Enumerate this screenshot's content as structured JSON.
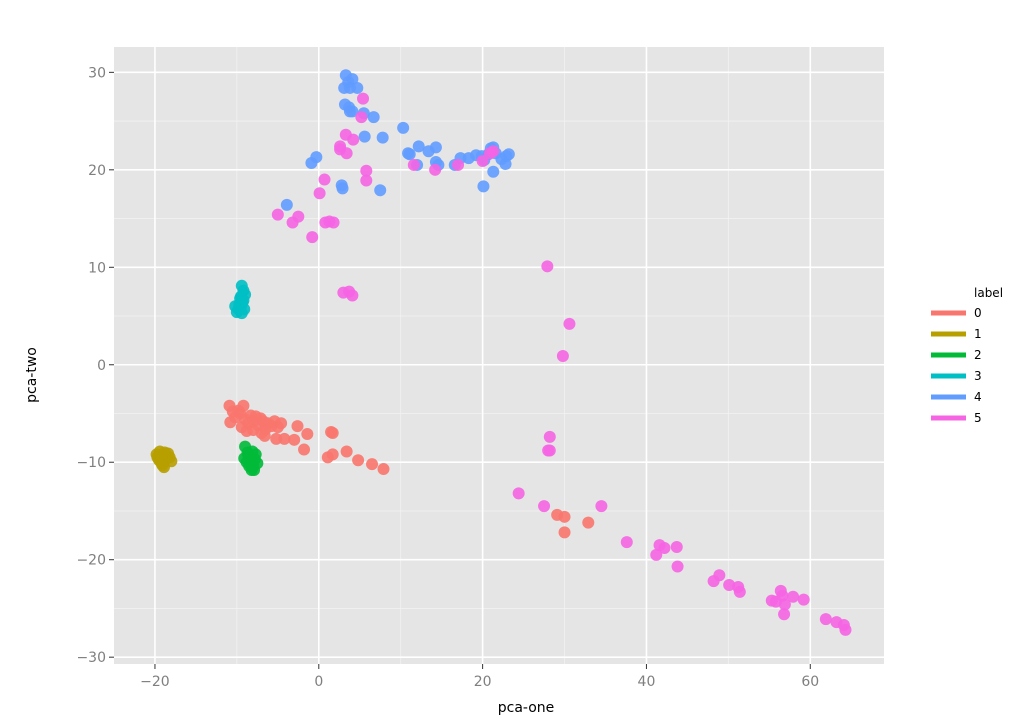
{
  "chart_data": {
    "type": "scatter",
    "title": "",
    "xlabel": "pca-one",
    "ylabel": "pca-two",
    "xlim": [
      -25,
      69
    ],
    "ylim": [
      -30.7,
      32.6
    ],
    "x_ticks": [
      -20,
      0,
      20,
      40,
      60
    ],
    "y_ticks": [
      -30,
      -20,
      -10,
      0,
      10,
      20,
      30
    ],
    "x_tick_labels": [
      "−20",
      "0",
      "20",
      "40",
      "60"
    ],
    "y_tick_labels": [
      "−30",
      "−20",
      "−10",
      "0",
      "10",
      "20",
      "30"
    ],
    "grid": true,
    "legend": {
      "title": "label",
      "position": "right"
    },
    "series": [
      {
        "name": "0",
        "color": "#f8766d",
        "points": [
          [
            -10.9,
            -4.2
          ],
          [
            -10.5,
            -4.8
          ],
          [
            -10.2,
            -5.4
          ],
          [
            -9.6,
            -5.0
          ],
          [
            -9.2,
            -4.2
          ],
          [
            -9.0,
            -5.6
          ],
          [
            -8.6,
            -6.0
          ],
          [
            -8.3,
            -5.2
          ],
          [
            -8.0,
            -5.8
          ],
          [
            -7.7,
            -5.3
          ],
          [
            -7.4,
            -6.2
          ],
          [
            -7.1,
            -5.5
          ],
          [
            -6.8,
            -5.8
          ],
          [
            -6.5,
            -6.6
          ],
          [
            -6.2,
            -6.0
          ],
          [
            -5.8,
            -6.3
          ],
          [
            -5.4,
            -5.8
          ],
          [
            -5.0,
            -6.4
          ],
          [
            -4.6,
            -6.0
          ],
          [
            -9.4,
            -6.4
          ],
          [
            -8.8,
            -6.8
          ],
          [
            -8.0,
            -6.7
          ],
          [
            -7.0,
            -7.0
          ],
          [
            -6.6,
            -7.3
          ],
          [
            -5.2,
            -7.6
          ],
          [
            -4.2,
            -7.6
          ],
          [
            -3.0,
            -7.7
          ],
          [
            -2.6,
            -6.3
          ],
          [
            -1.8,
            -8.7
          ],
          [
            -1.4,
            -7.1
          ],
          [
            -10.8,
            -5.9
          ],
          [
            -9.8,
            -4.7
          ],
          [
            1.5,
            -6.9
          ],
          [
            1.7,
            -7.0
          ],
          [
            1.1,
            -9.5
          ],
          [
            1.7,
            -9.2
          ],
          [
            3.4,
            -8.9
          ],
          [
            4.8,
            -9.8
          ],
          [
            6.5,
            -10.2
          ],
          [
            7.9,
            -10.7
          ],
          [
            29.1,
            -15.4
          ],
          [
            30.0,
            -15.6
          ],
          [
            30.0,
            -17.2
          ],
          [
            32.9,
            -16.2
          ]
        ]
      },
      {
        "name": "1",
        "color": "#b79f00",
        "points": [
          [
            -19.8,
            -9.2
          ],
          [
            -19.4,
            -8.9
          ],
          [
            -19.0,
            -9.4
          ],
          [
            -18.6,
            -9.6
          ],
          [
            -18.4,
            -9.1
          ],
          [
            -18.0,
            -9.9
          ],
          [
            -19.5,
            -9.8
          ],
          [
            -19.2,
            -10.1
          ],
          [
            -18.9,
            -10.5
          ],
          [
            -18.7,
            -9.7
          ],
          [
            -19.7,
            -9.5
          ],
          [
            -18.2,
            -9.5
          ],
          [
            -18.8,
            -9.0
          ],
          [
            -19.1,
            -10.3
          ]
        ]
      },
      {
        "name": "2",
        "color": "#00ba38",
        "points": [
          [
            -9.0,
            -8.4
          ],
          [
            -8.7,
            -9.0
          ],
          [
            -8.4,
            -9.4
          ],
          [
            -8.1,
            -8.9
          ],
          [
            -7.8,
            -9.7
          ],
          [
            -7.5,
            -10.1
          ],
          [
            -9.1,
            -9.6
          ],
          [
            -8.8,
            -10.0
          ],
          [
            -8.5,
            -10.4
          ],
          [
            -8.2,
            -10.8
          ],
          [
            -7.9,
            -10.8
          ],
          [
            -8.6,
            -9.3
          ],
          [
            -7.7,
            -9.2
          ],
          [
            -8.3,
            -9.9
          ],
          [
            -8.0,
            -10.4
          ]
        ]
      },
      {
        "name": "3",
        "color": "#00bfc4",
        "points": [
          [
            -9.4,
            8.1
          ],
          [
            -9.2,
            7.6
          ],
          [
            -9.0,
            7.2
          ],
          [
            -9.6,
            6.8
          ],
          [
            -9.3,
            6.4
          ],
          [
            -9.5,
            6.0
          ],
          [
            -9.8,
            5.7
          ],
          [
            -10.0,
            5.4
          ],
          [
            -9.4,
            5.3
          ],
          [
            -9.1,
            5.7
          ],
          [
            -9.7,
            6.2
          ],
          [
            -9.2,
            6.6
          ],
          [
            -9.5,
            7.0
          ],
          [
            -10.2,
            6.0
          ]
        ]
      },
      {
        "name": "4",
        "color": "#619cff",
        "points": [
          [
            3.3,
            29.7
          ],
          [
            4.1,
            29.3
          ],
          [
            3.6,
            29.0
          ],
          [
            3.1,
            28.4
          ],
          [
            3.8,
            28.4
          ],
          [
            4.7,
            28.4
          ],
          [
            3.2,
            26.7
          ],
          [
            3.7,
            26.4
          ],
          [
            3.8,
            26.0
          ],
          [
            4.1,
            26.0
          ],
          [
            5.5,
            25.8
          ],
          [
            6.7,
            25.4
          ],
          [
            5.6,
            23.4
          ],
          [
            7.8,
            23.3
          ],
          [
            10.3,
            24.3
          ],
          [
            12.2,
            22.4
          ],
          [
            13.4,
            21.9
          ],
          [
            14.3,
            22.3
          ],
          [
            10.9,
            21.7
          ],
          [
            11.1,
            21.6
          ],
          [
            12.0,
            20.5
          ],
          [
            14.6,
            20.5
          ],
          [
            16.6,
            20.5
          ],
          [
            17.3,
            21.2
          ],
          [
            18.3,
            21.2
          ],
          [
            19.2,
            21.5
          ],
          [
            19.9,
            21.4
          ],
          [
            20.2,
            21.0
          ],
          [
            20.7,
            21.6
          ],
          [
            21.0,
            22.2
          ],
          [
            21.3,
            22.3
          ],
          [
            21.6,
            21.7
          ],
          [
            22.3,
            21.1
          ],
          [
            22.9,
            21.4
          ],
          [
            23.2,
            21.6
          ],
          [
            22.8,
            20.6
          ],
          [
            21.3,
            19.8
          ],
          [
            20.1,
            18.3
          ],
          [
            14.3,
            20.8
          ],
          [
            -0.9,
            20.7
          ],
          [
            -0.3,
            21.3
          ],
          [
            2.8,
            18.4
          ],
          [
            2.9,
            18.1
          ],
          [
            7.5,
            17.9
          ],
          [
            -3.9,
            16.4
          ]
        ]
      },
      {
        "name": "5",
        "color": "#f564e3",
        "points": [
          [
            5.4,
            27.3
          ],
          [
            5.2,
            25.4
          ],
          [
            3.3,
            23.6
          ],
          [
            4.2,
            23.1
          ],
          [
            2.6,
            22.4
          ],
          [
            2.6,
            22.1
          ],
          [
            3.4,
            21.7
          ],
          [
            5.8,
            19.9
          ],
          [
            5.8,
            18.9
          ],
          [
            0.7,
            19.0
          ],
          [
            0.1,
            17.6
          ],
          [
            -5.0,
            15.4
          ],
          [
            -2.5,
            15.2
          ],
          [
            -3.2,
            14.6
          ],
          [
            0.8,
            14.6
          ],
          [
            1.3,
            14.7
          ],
          [
            1.8,
            14.6
          ],
          [
            -0.8,
            13.1
          ],
          [
            3.0,
            7.4
          ],
          [
            3.7,
            7.5
          ],
          [
            4.1,
            7.1
          ],
          [
            11.6,
            20.5
          ],
          [
            14.2,
            20.0
          ],
          [
            17.0,
            20.5
          ],
          [
            20.0,
            20.9
          ],
          [
            20.9,
            21.7
          ],
          [
            21.3,
            21.9
          ],
          [
            27.9,
            10.1
          ],
          [
            30.6,
            4.2
          ],
          [
            29.8,
            0.9
          ],
          [
            28.2,
            -7.4
          ],
          [
            28.0,
            -8.8
          ],
          [
            28.2,
            -8.8
          ],
          [
            24.4,
            -13.2
          ],
          [
            27.5,
            -14.5
          ],
          [
            34.5,
            -14.5
          ],
          [
            37.6,
            -18.2
          ],
          [
            41.6,
            -18.5
          ],
          [
            42.2,
            -18.8
          ],
          [
            41.2,
            -19.5
          ],
          [
            43.7,
            -18.7
          ],
          [
            43.8,
            -20.7
          ],
          [
            48.2,
            -22.2
          ],
          [
            48.9,
            -21.6
          ],
          [
            50.1,
            -22.6
          ],
          [
            51.2,
            -22.8
          ],
          [
            51.4,
            -23.3
          ],
          [
            55.3,
            -24.2
          ],
          [
            55.8,
            -24.3
          ],
          [
            56.4,
            -23.2
          ],
          [
            56.6,
            -23.7
          ],
          [
            56.9,
            -24.6
          ],
          [
            56.8,
            -25.6
          ],
          [
            57.9,
            -23.8
          ],
          [
            59.2,
            -24.1
          ],
          [
            61.9,
            -26.1
          ],
          [
            63.2,
            -26.4
          ],
          [
            64.1,
            -26.7
          ],
          [
            64.3,
            -27.2
          ]
        ]
      }
    ]
  }
}
